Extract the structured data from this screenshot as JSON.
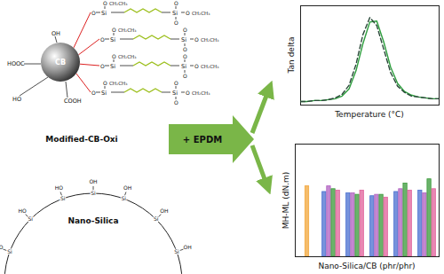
{
  "diagram": {
    "modified_cb": {
      "label": "Modified-CB-Oxi",
      "core": "CB",
      "groups": [
        "HOOC",
        "OH",
        "HO",
        "COOH"
      ],
      "silane_atoms": [
        "Si",
        "O",
        "CH₂CH₃"
      ]
    },
    "nano_silica": {
      "label": "Nano-Silica",
      "atoms": [
        "Si",
        "HO",
        "OH"
      ]
    },
    "arrow": {
      "label": "+ EPDM",
      "color": "#7ab648"
    }
  },
  "chart_data": [
    {
      "type": "line",
      "x_label": "Temperature (°C)",
      "y_label": "Tan delta",
      "tick_labels": false,
      "x": [
        0,
        5,
        10,
        15,
        20,
        25,
        30,
        35,
        40,
        45,
        50,
        55,
        60,
        65,
        70,
        75,
        80,
        85,
        90,
        95,
        100
      ],
      "xlim": [
        0,
        100
      ],
      "ylim": [
        0,
        1.1
      ],
      "series": [
        {
          "color": "#2e9e3e",
          "line_style": "solid",
          "values": [
            0.04,
            0.04,
            0.05,
            0.05,
            0.06,
            0.07,
            0.1,
            0.18,
            0.38,
            0.68,
            0.92,
            0.93,
            0.7,
            0.42,
            0.24,
            0.15,
            0.11,
            0.09,
            0.08,
            0.07,
            0.07
          ]
        },
        {
          "color": "#2b4a3a",
          "line_style": "dashed",
          "values": [
            0.04,
            0.04,
            0.05,
            0.05,
            0.06,
            0.08,
            0.12,
            0.22,
            0.45,
            0.78,
            0.97,
            0.88,
            0.62,
            0.36,
            0.21,
            0.14,
            0.1,
            0.09,
            0.08,
            0.07,
            0.07
          ]
        }
      ]
    },
    {
      "type": "bar",
      "x_label": "Nano-Silica/CB (phr/phr)",
      "y_label": "MH-ML (dN.m)",
      "tick_labels": false,
      "categories": [
        null,
        null,
        null,
        null,
        null,
        null
      ],
      "ylim": [
        0,
        8
      ],
      "series": [
        {
          "color": "#f2a63a",
          "values": [
            5.0,
            null,
            null,
            null,
            null,
            null
          ]
        },
        {
          "color": "#4a6fd0",
          "values": [
            null,
            4.6,
            4.5,
            4.3,
            4.6,
            4.7
          ]
        },
        {
          "color": "#b060c0",
          "values": [
            null,
            5.0,
            4.5,
            4.4,
            4.8,
            4.5
          ]
        },
        {
          "color": "#3a9a3a",
          "values": [
            null,
            4.8,
            4.4,
            4.4,
            5.2,
            5.5
          ]
        },
        {
          "color": "#e0609a",
          "values": [
            null,
            4.7,
            4.7,
            4.2,
            4.7,
            4.8
          ]
        }
      ]
    }
  ]
}
